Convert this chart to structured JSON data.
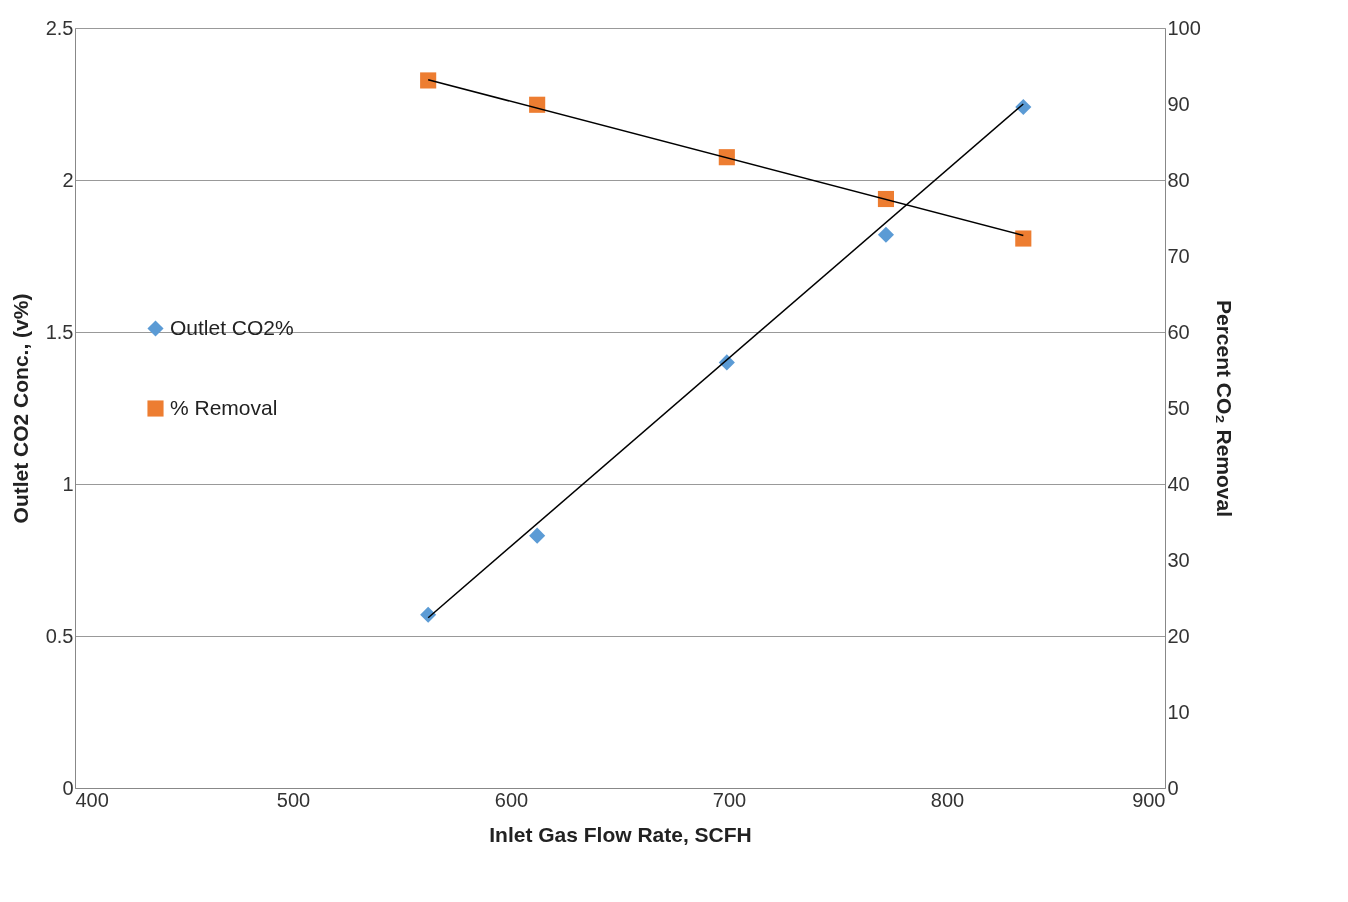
{
  "chart_data": {
    "type": "scatter",
    "xlabel": "Inlet Gas Flow Rate, SCFH",
    "ylabel": "Outlet CO2 Conc., (v%)",
    "y2label": "Percent CO₂ Removal",
    "xlim": [
      400,
      900
    ],
    "xticks": [
      400,
      500,
      600,
      700,
      800,
      900
    ],
    "ylim": [
      0,
      2.5
    ],
    "yticks": [
      0,
      0.5,
      1,
      1.5,
      2,
      2.5
    ],
    "y2lim": [
      0,
      100
    ],
    "y2ticks": [
      0,
      10,
      20,
      30,
      40,
      50,
      60,
      70,
      80,
      90,
      100
    ],
    "grid": "y",
    "legend": "left",
    "series": [
      {
        "name": "Outlet CO2%",
        "marker": "diamond",
        "color": "#5b9bd5",
        "x": [
          562,
          612,
          699,
          772,
          835
        ],
        "values": [
          0.57,
          0.83,
          1.4,
          1.82,
          2.24
        ]
      },
      {
        "type": "line",
        "marker": "none",
        "color": "#000000",
        "x": [
          562,
          835
        ],
        "values": [
          0.56,
          2.25
        ]
      },
      {
        "name": "% Removal",
        "marker": "square",
        "axis": "y2",
        "color": "#ed7d31",
        "x": [
          562,
          612,
          699,
          772,
          835
        ],
        "values": [
          93.1,
          89.9,
          83.0,
          77.5,
          72.3
        ]
      },
      {
        "type": "line",
        "marker": "none",
        "axis": "y2",
        "color": "#000000",
        "x": [
          562,
          835
        ],
        "values": [
          93.2,
          72.7
        ]
      }
    ]
  }
}
